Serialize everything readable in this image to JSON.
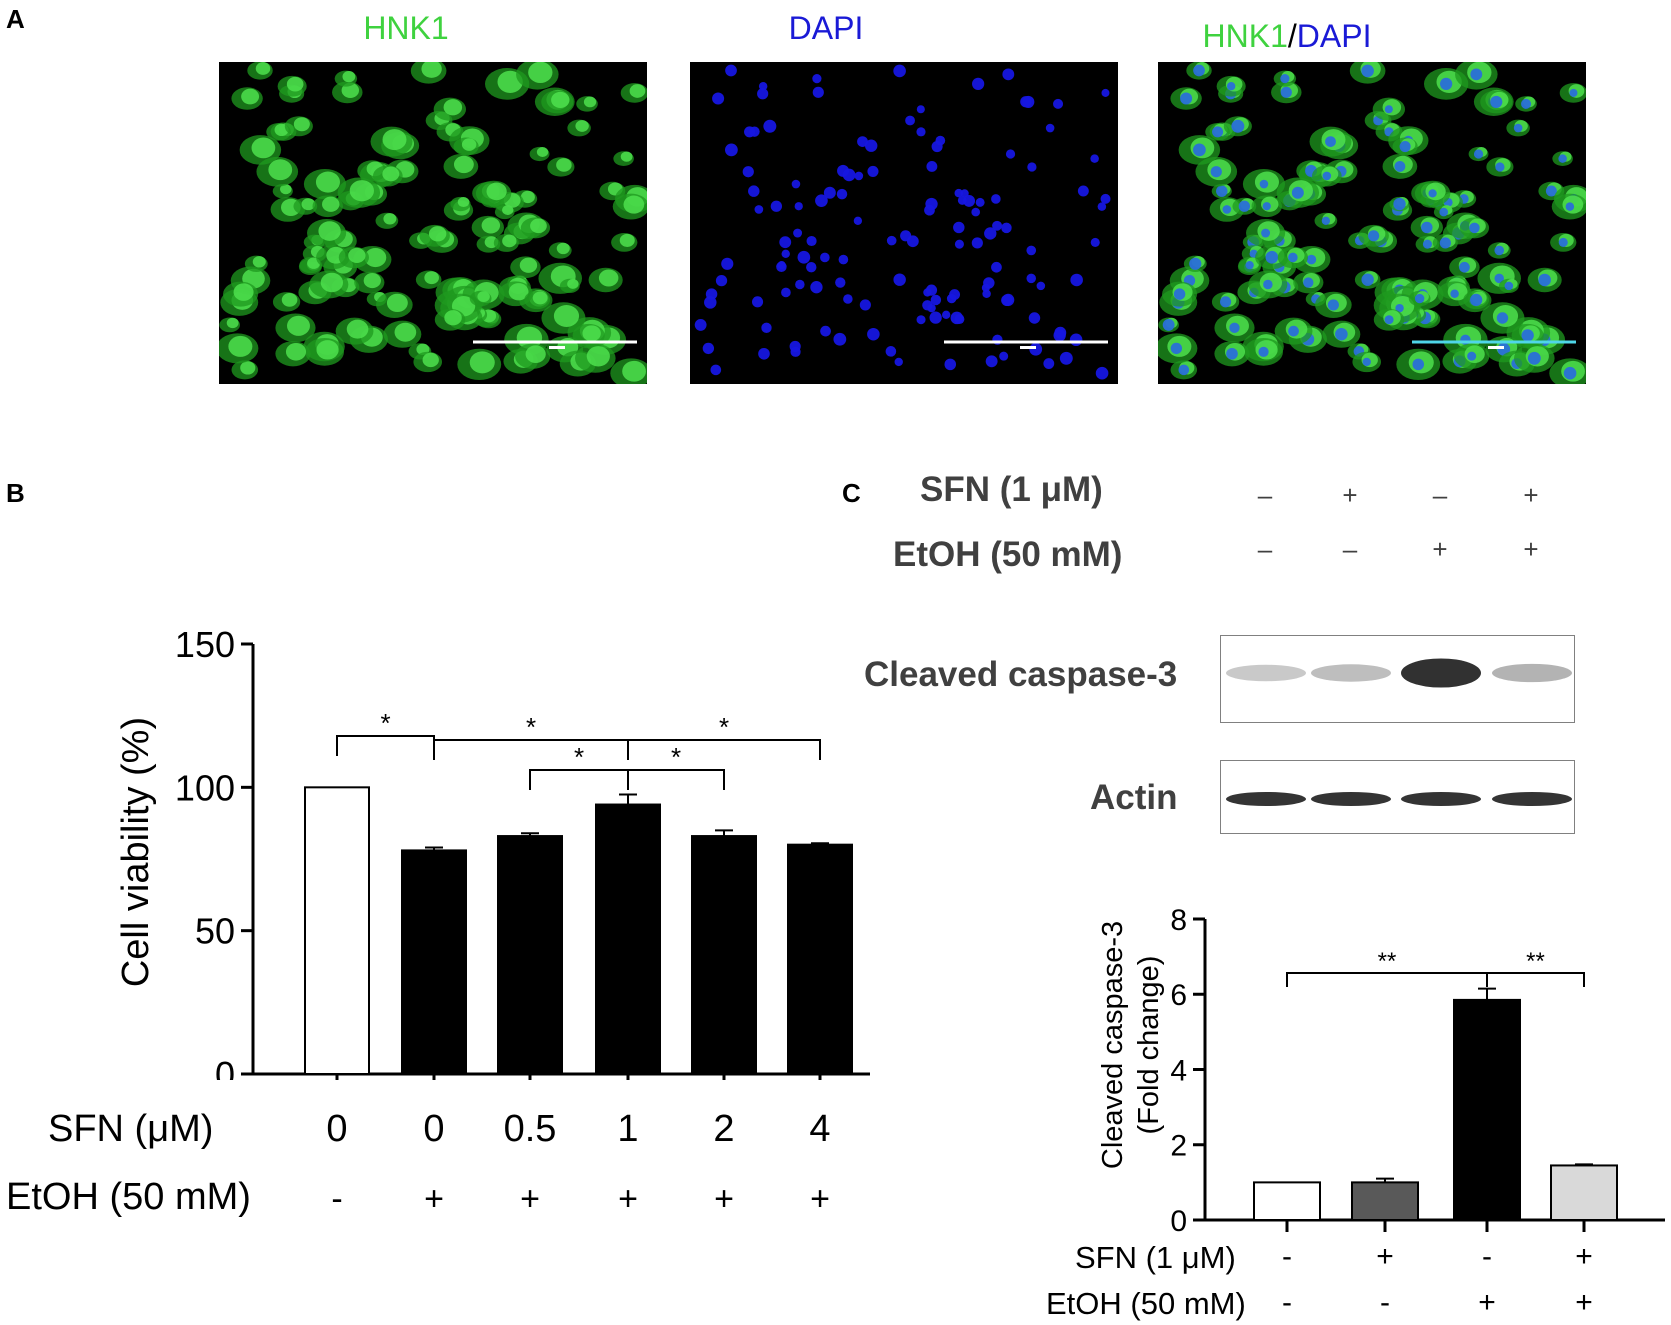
{
  "panel_a": {
    "letter": "A",
    "titles": {
      "hnk1": "HNK1",
      "dapi": "DAPI",
      "merge_hnk1": "HNK1",
      "merge_slash": "/",
      "merge_dapi": "DAPI"
    },
    "colors": {
      "hnk1": "#3fd23f",
      "dapi": "#1a1ad6",
      "slash": "#000000"
    }
  },
  "panel_b": {
    "letter": "B",
    "row_labels": {
      "sfn": "SFN (μM)",
      "etoh": "EtOH (50 mM)"
    },
    "sfn_values": [
      "0",
      "0",
      "0.5",
      "1",
      "2",
      "4"
    ],
    "etoh_values": [
      "-",
      "+",
      "+",
      "+",
      "+",
      "+"
    ],
    "significance": [
      "*",
      "*",
      "*",
      "*",
      "*"
    ]
  },
  "panel_c": {
    "letter": "C",
    "blot_labels": {
      "sfn": "SFN (1 μM)",
      "etoh": "EtOH (50 mM)"
    },
    "blot_sfn": [
      "–",
      "+",
      "–",
      "+"
    ],
    "blot_etoh": [
      "–",
      "–",
      "+",
      "+"
    ],
    "bands": {
      "caspase": "Cleaved caspase-3",
      "actin": "Actin"
    },
    "caspase_intensity": [
      0.25,
      0.3,
      0.95,
      0.35
    ],
    "row_labels": {
      "sfn": "SFN (1 μM)",
      "etoh": "EtOH (50 mM)"
    },
    "sfn_values": [
      "-",
      "+",
      "-",
      "+"
    ],
    "etoh_values": [
      "-",
      "-",
      "+",
      "+"
    ],
    "significance": [
      "**",
      "**"
    ]
  },
  "chart_data": [
    {
      "type": "bar",
      "categories": [
        "0 / -",
        "0 / +",
        "0.5 / +",
        "1 / +",
        "2 / +",
        "4 / +"
      ],
      "values": [
        100,
        78,
        83,
        94,
        83,
        80
      ],
      "errors": [
        0,
        1,
        1,
        3.5,
        2,
        0.5
      ],
      "bar_colors": [
        "#ffffff",
        "#000000",
        "#000000",
        "#000000",
        "#000000",
        "#000000"
      ],
      "xlabel": "",
      "ylabel": "Cell viability (%)",
      "ylim": [
        0,
        150
      ],
      "yticks": [
        0,
        50,
        100,
        150
      ],
      "grid": false
    },
    {
      "type": "bar",
      "categories": [
        "- / -",
        "+ / -",
        "- / +",
        "+ / +"
      ],
      "values": [
        1,
        1,
        5.85,
        1.45
      ],
      "errors": [
        0,
        0.1,
        0.3,
        0.03
      ],
      "bar_colors": [
        "#ffffff",
        "#595959",
        "#000000",
        "#d9d9d9"
      ],
      "xlabel": "",
      "ylabel_line1": "Cleaved caspase-3",
      "ylabel_line2": "(Fold change)",
      "ylim": [
        0,
        8
      ],
      "yticks": [
        0,
        2,
        4,
        6,
        8
      ],
      "grid": false
    }
  ]
}
